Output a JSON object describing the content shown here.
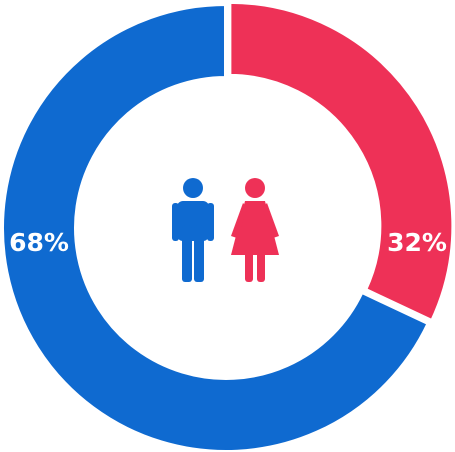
{
  "chart_data": {
    "type": "donut",
    "values": [
      32,
      68
    ],
    "value_labels": [
      "32%",
      "68%"
    ],
    "colors": [
      "#ee3157",
      "#0f6ad0"
    ]
  }
}
